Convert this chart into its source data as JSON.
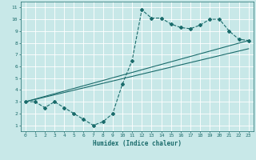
{
  "xlabel": "Humidex (Indice chaleur)",
  "bg_color": "#c8e8e8",
  "grid_color": "#ffffff",
  "line_color": "#1a6b6b",
  "xlim": [
    -0.5,
    23.5
  ],
  "ylim": [
    0.5,
    11.5
  ],
  "xticks": [
    0,
    1,
    2,
    3,
    4,
    5,
    6,
    7,
    8,
    9,
    10,
    11,
    12,
    13,
    14,
    15,
    16,
    17,
    18,
    19,
    20,
    21,
    22,
    23
  ],
  "yticks": [
    1,
    2,
    3,
    4,
    5,
    6,
    7,
    8,
    9,
    10,
    11
  ],
  "curve1_x": [
    0,
    1,
    2,
    3,
    4,
    5,
    6,
    7,
    8,
    9,
    10,
    11,
    12,
    13,
    14,
    15,
    16,
    17,
    18,
    19,
    20,
    21,
    22,
    23
  ],
  "curve1_y": [
    3,
    3,
    2.5,
    3,
    2.5,
    2,
    1.5,
    1.0,
    1.3,
    2.0,
    4.5,
    6.5,
    10.8,
    10.1,
    10.1,
    9.6,
    9.3,
    9.2,
    9.5,
    10.0,
    10.0,
    9.0,
    8.3,
    8.2
  ],
  "line2_x": [
    0,
    23
  ],
  "line2_y": [
    3,
    8.2
  ],
  "line3_x": [
    0,
    23
  ],
  "line3_y": [
    3,
    7.5
  ]
}
